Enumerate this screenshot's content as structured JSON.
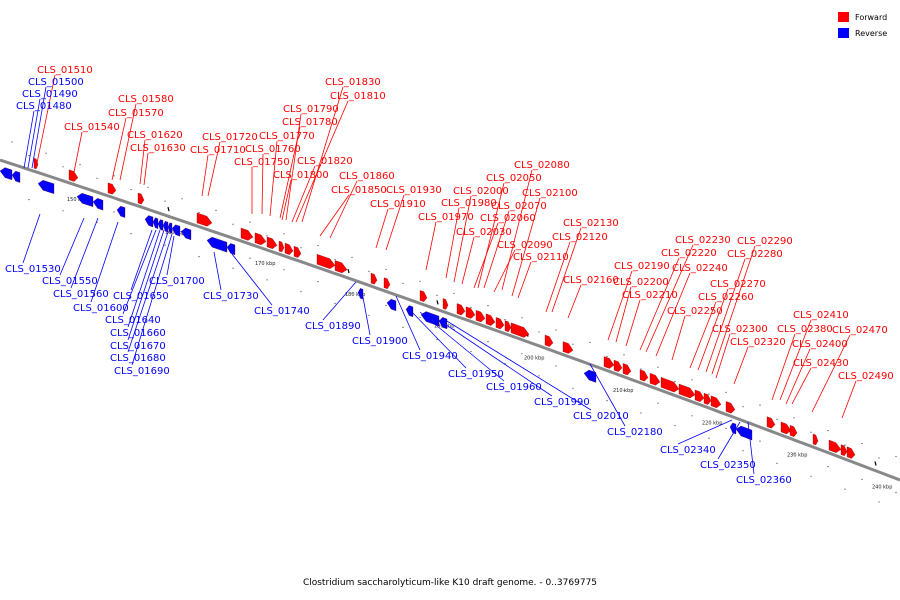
{
  "legend": {
    "forward_label": "Forward",
    "reverse_label": "Reverse",
    "forward_color": "#ff0000",
    "reverse_color": "#0000ff"
  },
  "caption": "Clostridium saccharolyticum-like K10 draft genome. - 0..3769775",
  "backbone_color": "#888888",
  "ticks": [
    "150 kbp",
    "160 kbp",
    "170 kbp",
    "180 kbp",
    "190 kbp",
    "200 kbp",
    "210 kbp",
    "220 kbp",
    "230 kbp",
    "240 kbp"
  ],
  "genes": [
    {
      "id": "CLS_01510",
      "strand": "forward"
    },
    {
      "id": "CLS_01500",
      "strand": "reverse"
    },
    {
      "id": "CLS_01490",
      "strand": "reverse"
    },
    {
      "id": "CLS_01480",
      "strand": "reverse"
    },
    {
      "id": "CLS_01580",
      "strand": "forward"
    },
    {
      "id": "CLS_01570",
      "strand": "forward"
    },
    {
      "id": "CLS_01540",
      "strand": "forward"
    },
    {
      "id": "CLS_01620",
      "strand": "forward"
    },
    {
      "id": "CLS_01630",
      "strand": "forward"
    },
    {
      "id": "CLS_01830",
      "strand": "forward"
    },
    {
      "id": "CLS_01810",
      "strand": "forward"
    },
    {
      "id": "CLS_01790",
      "strand": "forward"
    },
    {
      "id": "CLS_01780",
      "strand": "forward"
    },
    {
      "id": "CLS_01770",
      "strand": "forward"
    },
    {
      "id": "CLS_01720",
      "strand": "forward"
    },
    {
      "id": "CLS_01760",
      "strand": "forward"
    },
    {
      "id": "CLS_01710",
      "strand": "forward"
    },
    {
      "id": "CLS_01820",
      "strand": "forward"
    },
    {
      "id": "CLS_01750",
      "strand": "forward"
    },
    {
      "id": "CLS_01800",
      "strand": "forward"
    },
    {
      "id": "CLS_01860",
      "strand": "forward"
    },
    {
      "id": "CLS_01850",
      "strand": "forward"
    },
    {
      "id": "CLS_01930",
      "strand": "forward"
    },
    {
      "id": "CLS_01910",
      "strand": "forward"
    },
    {
      "id": "CLS_02080",
      "strand": "forward"
    },
    {
      "id": "CLS_02050",
      "strand": "forward"
    },
    {
      "id": "CLS_02000",
      "strand": "forward"
    },
    {
      "id": "CLS_02100",
      "strand": "forward"
    },
    {
      "id": "CLS_01980",
      "strand": "forward"
    },
    {
      "id": "CLS_02070",
      "strand": "forward"
    },
    {
      "id": "CLS_01970",
      "strand": "forward"
    },
    {
      "id": "CLS_02060",
      "strand": "forward"
    },
    {
      "id": "CLS_02030",
      "strand": "forward"
    },
    {
      "id": "CLS_02090",
      "strand": "forward"
    },
    {
      "id": "CLS_02110",
      "strand": "forward"
    },
    {
      "id": "CLS_02130",
      "strand": "forward"
    },
    {
      "id": "CLS_02120",
      "strand": "forward"
    },
    {
      "id": "CLS_02160",
      "strand": "forward"
    },
    {
      "id": "CLS_02230",
      "strand": "forward"
    },
    {
      "id": "CLS_02290",
      "strand": "forward"
    },
    {
      "id": "CLS_02220",
      "strand": "forward"
    },
    {
      "id": "CLS_02280",
      "strand": "forward"
    },
    {
      "id": "CLS_02190",
      "strand": "forward"
    },
    {
      "id": "CLS_02240",
      "strand": "forward"
    },
    {
      "id": "CLS_02200",
      "strand": "forward"
    },
    {
      "id": "CLS_02270",
      "strand": "forward"
    },
    {
      "id": "CLS_02210",
      "strand": "forward"
    },
    {
      "id": "CLS_02260",
      "strand": "forward"
    },
    {
      "id": "CLS_02250",
      "strand": "forward"
    },
    {
      "id": "CLS_02300",
      "strand": "forward"
    },
    {
      "id": "CLS_02320",
      "strand": "forward"
    },
    {
      "id": "CLS_02410",
      "strand": "forward"
    },
    {
      "id": "CLS_02380",
      "strand": "forward"
    },
    {
      "id": "CLS_02470",
      "strand": "forward"
    },
    {
      "id": "CLS_02400",
      "strand": "forward"
    },
    {
      "id": "CLS_02430",
      "strand": "forward"
    },
    {
      "id": "CLS_02490",
      "strand": "forward"
    },
    {
      "id": "CLS_01530",
      "strand": "reverse"
    },
    {
      "id": "CLS_01550",
      "strand": "reverse"
    },
    {
      "id": "CLS_01560",
      "strand": "reverse"
    },
    {
      "id": "CLS_01600",
      "strand": "reverse"
    },
    {
      "id": "CLS_01650",
      "strand": "reverse"
    },
    {
      "id": "CLS_01700",
      "strand": "reverse"
    },
    {
      "id": "CLS_01640",
      "strand": "reverse"
    },
    {
      "id": "CLS_01660",
      "strand": "reverse"
    },
    {
      "id": "CLS_01670",
      "strand": "reverse"
    },
    {
      "id": "CLS_01680",
      "strand": "reverse"
    },
    {
      "id": "CLS_01690",
      "strand": "reverse"
    },
    {
      "id": "CLS_01730",
      "strand": "reverse"
    },
    {
      "id": "CLS_01740",
      "strand": "reverse"
    },
    {
      "id": "CLS_01890",
      "strand": "reverse"
    },
    {
      "id": "CLS_01900",
      "strand": "reverse"
    },
    {
      "id": "CLS_01940",
      "strand": "reverse"
    },
    {
      "id": "CLS_01950",
      "strand": "reverse"
    },
    {
      "id": "CLS_01960",
      "strand": "reverse"
    },
    {
      "id": "CLS_01990",
      "strand": "reverse"
    },
    {
      "id": "CLS_02010",
      "strand": "reverse"
    },
    {
      "id": "CLS_02180",
      "strand": "reverse"
    },
    {
      "id": "CLS_02340",
      "strand": "reverse"
    },
    {
      "id": "CLS_02350",
      "strand": "reverse"
    },
    {
      "id": "CLS_02360",
      "strand": "reverse"
    }
  ]
}
